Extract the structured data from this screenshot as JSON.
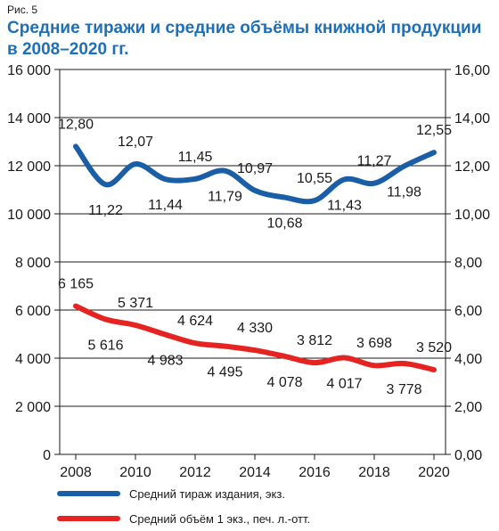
{
  "figure_label": "Рис. 5",
  "chart_data": {
    "type": "line",
    "title": "Средние тиражи и средние объёмы книжной продукции в 2008–2020 гг.",
    "x": [
      2008,
      2009,
      2010,
      2011,
      2012,
      2013,
      2014,
      2015,
      2016,
      2017,
      2018,
      2019,
      2020
    ],
    "x_ticks": [
      "2008",
      "2010",
      "2012",
      "2014",
      "2016",
      "2018",
      "2020"
    ],
    "x_range": [
      2008,
      2020
    ],
    "y_left_range": [
      0,
      16000
    ],
    "y_left_ticks": [
      "0",
      "2 000",
      "4 000",
      "6 000",
      "8 000",
      "10 000",
      "12 000",
      "14 000",
      "16 000"
    ],
    "y_right_range": [
      0,
      16
    ],
    "y_right_ticks": [
      "0,00",
      "2,00",
      "4,00",
      "6,00",
      "8,00",
      "10,00",
      "12,00",
      "14,00",
      "16,00"
    ],
    "grid": true,
    "legend_position": "bottom",
    "series": [
      {
        "name": "Средний тираж издания, экз.",
        "color": "#1a5ea8",
        "axis": "right",
        "values": [
          12.8,
          11.22,
          12.07,
          11.44,
          11.45,
          11.79,
          10.97,
          10.68,
          10.55,
          11.43,
          11.27,
          11.98,
          12.55
        ],
        "labels": [
          "12,80",
          "11,22",
          "12,07",
          "11,44",
          "11,45",
          "11,79",
          "10,97",
          "10,68",
          "10,55",
          "11,43",
          "11,27",
          "11,98",
          "12,55"
        ]
      },
      {
        "name": "Средний объём 1 экз., печ. л.-отт.",
        "color": "#e52421",
        "axis": "left",
        "values": [
          6165,
          5616,
          5371,
          4983,
          4624,
          4495,
          4330,
          4078,
          3812,
          4017,
          3698,
          3778,
          3520
        ],
        "labels": [
          "6 165",
          "5 616",
          "5 371",
          "4 983",
          "4 624",
          "4 495",
          "4 330",
          "4 078",
          "3 812",
          "4 017",
          "3 698",
          "3 778",
          "3 520"
        ]
      }
    ]
  }
}
